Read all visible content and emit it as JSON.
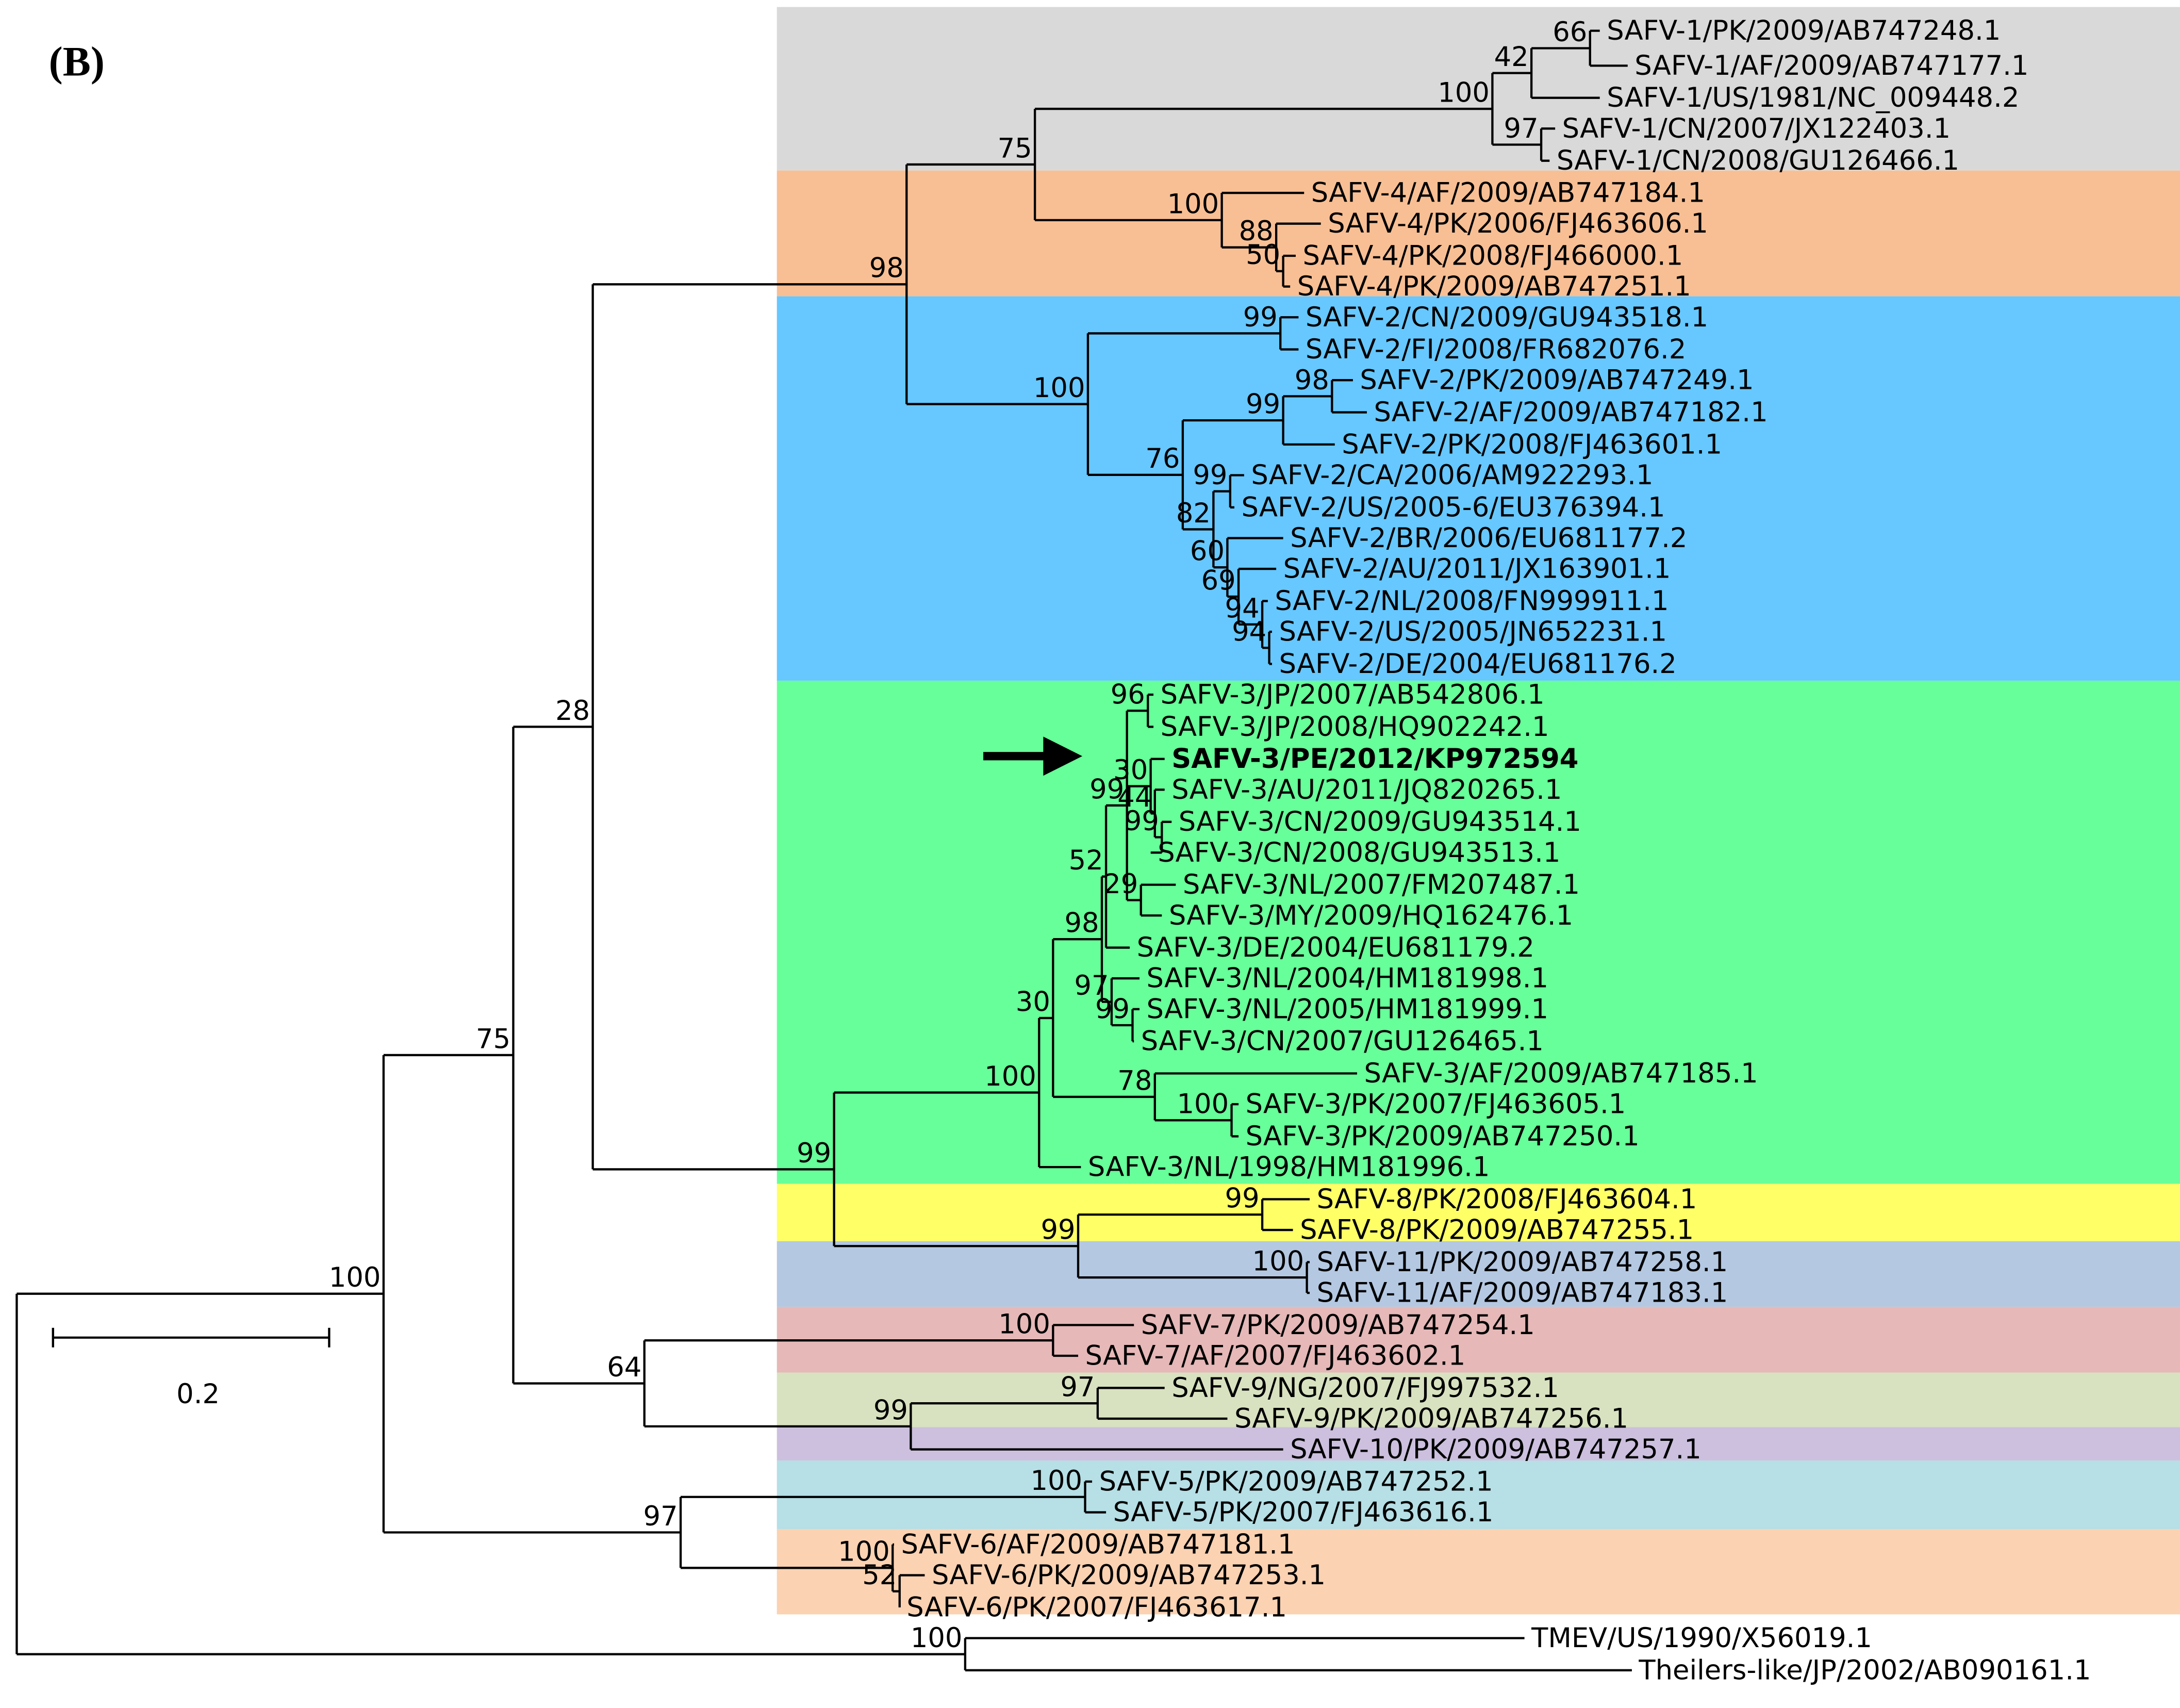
{
  "panel_label": "(B)",
  "scale_bar": {
    "label": 0.2
  },
  "leaves": [
    "SAFV-1/PK/2009/AB747248.1",
    "SAFV-1/AF/2009/AB747177.1",
    "SAFV-1/US/1981/NC_009448.2",
    "SAFV-1/CN/2007/JX122403.1",
    "SAFV-1/CN/2008/GU126466.1",
    "SAFV-4/AF/2009/AB747184.1",
    "SAFV-4/PK/2006/FJ463606.1",
    "SAFV-4/PK/2008/FJ466000.1",
    "SAFV-4/PK/2009/AB747251.1",
    "SAFV-2/CN/2009/GU943518.1",
    "SAFV-2/FI/2008/FR682076.2",
    "SAFV-2/PK/2009/AB747249.1",
    "SAFV-2/AF/2009/AB747182.1",
    "SAFV-2/PK/2008/FJ463601.1",
    "SAFV-2/CA/2006/AM922293.1",
    "SAFV-2/US/2005-6/EU376394.1",
    "SAFV-2/BR/2006/EU681177.2",
    "SAFV-2/AU/2011/JX163901.1",
    "SAFV-2/NL/2008/FN999911.1",
    "SAFV-2/US/2005/JN652231.1",
    "SAFV-2/DE/2004/EU681176.2",
    "SAFV-3/JP/2007/AB542806.1",
    "SAFV-3/JP/2008/HQ902242.1",
    "SAFV-3/PE/2012/KP972594",
    "SAFV-3/AU/2011/JQ820265.1",
    "SAFV-3/CN/2009/GU943514.1",
    "SAFV-3/CN/2008/GU943513.1",
    "SAFV-3/NL/2007/FM207487.1",
    "SAFV-3/MY/2009/HQ162476.1",
    "SAFV-3/DE/2004/EU681179.2",
    "SAFV-3/NL/2004/HM181998.1",
    "SAFV-3/NL/2005/HM181999.1",
    "SAFV-3/CN/2007/GU126465.1",
    "SAFV-3/AF/2009/AB747185.1",
    "SAFV-3/PK/2007/FJ463605.1",
    "SAFV-3/PK/2009/AB747250.1",
    "SAFV-3/NL/1998/HM181996.1",
    "SAFV-8/PK/2008/FJ463604.1",
    "SAFV-8/PK/2009/AB747255.1",
    "SAFV-11/PK/2009/AB747258.1",
    "SAFV-11/AF/2009/AB747183.1",
    "SAFV-7/PK/2009/AB747254.1",
    "SAFV-7/AF/2007/FJ463602.1",
    "SAFV-9/NG/2007/FJ997532.1",
    "SAFV-9/PK/2009/AB747256.1",
    "SAFV-10/PK/2009/AB747257.1",
    "SAFV-5/PK/2009/AB747252.1",
    "SAFV-5/PK/2007/FJ463616.1",
    "SAFV-6/AF/2009/AB747181.1",
    "SAFV-6/PK/2009/AB747253.1",
    "SAFV-6/PK/2007/FJ463617.1",
    "TMEV/US/1990/X56019.1",
    "Theilers-like/JP/2002/AB090161.1"
  ],
  "bootstrap": [
    100,
    75,
    28,
    98,
    75,
    100,
    42,
    66,
    97,
    100,
    88,
    50,
    100,
    99,
    76,
    99,
    98,
    82,
    99,
    60,
    69,
    94,
    94,
    99,
    100,
    30,
    98,
    52,
    99,
    96,
    30,
    44,
    99,
    29,
    97,
    99,
    78,
    100,
    99,
    99,
    100,
    64,
    100,
    99,
    97,
    97,
    100,
    100,
    52,
    100
  ]
}
